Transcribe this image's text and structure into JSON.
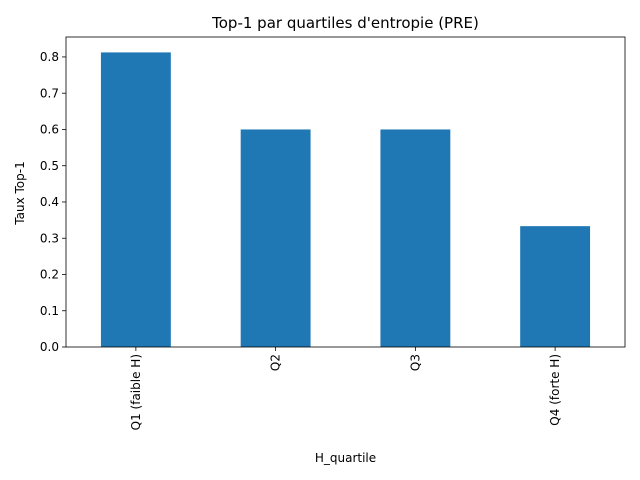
{
  "chart_data": {
    "type": "bar",
    "title": "Top-1 par quartiles d'entropie (PRE)",
    "xlabel": "H_quartile",
    "ylabel": "Taux Top-1",
    "categories": [
      "Q1 (faible H)",
      "Q2",
      "Q3",
      "Q4 (forte H)"
    ],
    "values": [
      0.8125,
      0.6,
      0.6,
      0.3333
    ],
    "ylim": [
      0,
      0.855
    ],
    "yticks": [
      "0.0",
      "0.1",
      "0.2",
      "0.3",
      "0.4",
      "0.5",
      "0.6",
      "0.7",
      "0.8"
    ],
    "grid": false,
    "legend": "none",
    "bar_color": "#1f77b4"
  }
}
